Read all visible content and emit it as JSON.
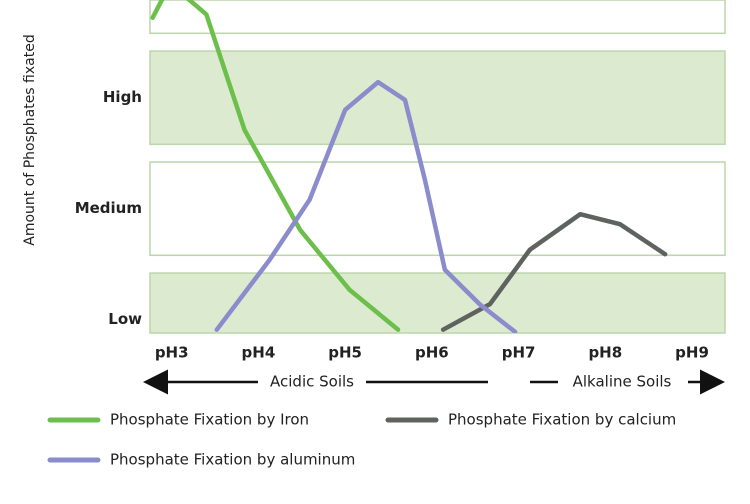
{
  "chart_data": {
    "type": "line",
    "y_label": "Amount of Phosphates fixated",
    "xlim": [
      2.75,
      9.38
    ],
    "ylim": [
      0.88,
      3.88
    ],
    "xticks": [
      {
        "value": 3,
        "label": "pH3"
      },
      {
        "value": 4,
        "label": "pH4"
      },
      {
        "value": 5,
        "label": "pH5"
      },
      {
        "value": 6,
        "label": "pH6"
      },
      {
        "value": 7,
        "label": "pH7"
      },
      {
        "value": 8,
        "label": "pH8"
      },
      {
        "value": 9,
        "label": "pH9"
      }
    ],
    "yticks": [
      {
        "value": 1,
        "label": "Low"
      },
      {
        "value": 2,
        "label": "Medium"
      },
      {
        "value": 3,
        "label": "High"
      }
    ],
    "annotations": [
      "Acidic Soils",
      "Alkaline Soils"
    ],
    "series": [
      {
        "name": "Phosphate Fixation by Iron",
        "color": "#6cbf4a",
        "x": [
          2.78,
          2.9,
          3.1,
          3.4,
          3.84,
          4.48,
          5.05,
          5.61
        ],
        "values": [
          3.72,
          3.9,
          3.95,
          3.75,
          2.71,
          1.81,
          1.27,
          0.91
        ]
      },
      {
        "name": "Phosphate Fixation by calcium",
        "color": "#5f6360",
        "x": [
          6.13,
          6.67,
          7.13,
          7.71,
          8.17,
          8.69
        ],
        "values": [
          0.91,
          1.14,
          1.63,
          1.95,
          1.86,
          1.59
        ]
      },
      {
        "name": "Phosphate Fixation by aluminum",
        "color": "#8a8ccc",
        "x": [
          3.52,
          4.13,
          4.59,
          5.0,
          5.38,
          5.69,
          5.92,
          6.15,
          6.55,
          6.96
        ],
        "values": [
          0.91,
          1.54,
          2.08,
          2.89,
          3.14,
          2.98,
          2.26,
          1.45,
          1.14,
          0.89
        ]
      }
    ]
  }
}
